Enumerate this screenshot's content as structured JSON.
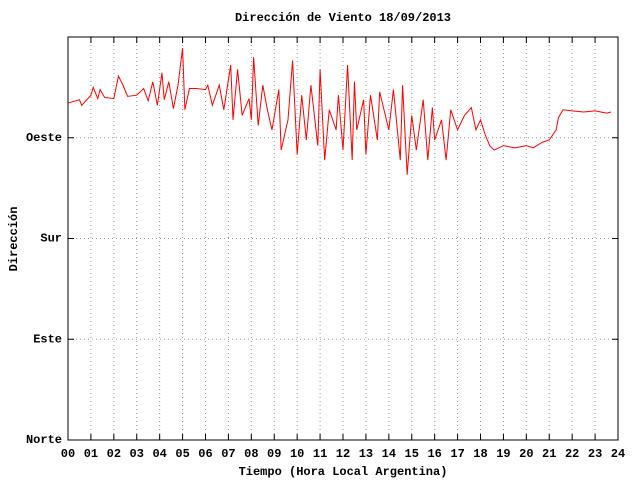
{
  "chart_data": {
    "type": "line",
    "title": "Dirección de Viento 18/09/2013",
    "x_label": "Tiempo (Hora Local Argentina)",
    "y_label": "Dirección",
    "color": "#ff0000",
    "grid": true,
    "xlim": [
      0,
      24
    ],
    "xticks": [
      {
        "value": 0,
        "label": "00"
      },
      {
        "value": 1,
        "label": "01"
      },
      {
        "value": 2,
        "label": "02"
      },
      {
        "value": 3,
        "label": "03"
      },
      {
        "value": 4,
        "label": "04"
      },
      {
        "value": 5,
        "label": "05"
      },
      {
        "value": 6,
        "label": "06"
      },
      {
        "value": 7,
        "label": "07"
      },
      {
        "value": 8,
        "label": "08"
      },
      {
        "value": 9,
        "label": "09"
      },
      10,
      11,
      12,
      13,
      14,
      15,
      16,
      17,
      18,
      19,
      20,
      21,
      22,
      23,
      24
    ],
    "ylim": [
      0,
      360
    ],
    "yticks": [
      {
        "value": 0,
        "label": "Norte"
      },
      {
        "value": 90,
        "label": "Este"
      },
      {
        "value": 180,
        "label": "Sur"
      },
      {
        "value": 270,
        "label": "Oeste"
      }
    ],
    "x": [
      0.0,
      0.5,
      0.6,
      1.0,
      1.1,
      1.3,
      1.4,
      1.6,
      2.0,
      2.2,
      2.4,
      2.6,
      3.0,
      3.3,
      3.5,
      3.7,
      3.9,
      4.1,
      4.2,
      4.4,
      4.6,
      4.8,
      5.0,
      5.1,
      5.3,
      5.6,
      6.0,
      6.1,
      6.3,
      6.6,
      6.8,
      7.1,
      7.2,
      7.4,
      7.6,
      7.9,
      8.0,
      8.1,
      8.3,
      8.5,
      8.7,
      8.9,
      9.2,
      9.3,
      9.6,
      9.8,
      10.0,
      10.2,
      10.4,
      10.6,
      10.9,
      11.0,
      11.2,
      11.4,
      11.7,
      11.8,
      12.0,
      12.2,
      12.4,
      12.5,
      12.6,
      12.9,
      13.0,
      13.2,
      13.5,
      13.6,
      14.0,
      14.2,
      14.5,
      14.6,
      14.8,
      15.0,
      15.2,
      15.5,
      15.7,
      15.9,
      16.0,
      16.3,
      16.5,
      16.7,
      17.0,
      17.3,
      17.6,
      17.8,
      18.0,
      18.2,
      18.4,
      18.6,
      19.0,
      19.5,
      20.0,
      20.3,
      20.7,
      21.0,
      21.3,
      21.4,
      21.6,
      22.0,
      22.5,
      23.0,
      23.5,
      23.7
    ],
    "values": [
      301,
      304,
      299,
      308,
      315,
      305,
      313,
      306,
      305,
      325,
      317,
      307,
      308,
      314,
      303,
      320,
      299,
      328,
      304,
      320,
      296,
      317,
      350,
      295,
      314,
      314,
      313,
      317,
      299,
      317,
      295,
      335,
      286,
      331,
      290,
      305,
      286,
      342,
      281,
      317,
      295,
      277,
      313,
      259,
      286,
      339,
      255,
      308,
      268,
      317,
      263,
      331,
      250,
      295,
      277,
      308,
      259,
      335,
      250,
      320,
      277,
      304,
      255,
      308,
      268,
      311,
      277,
      313,
      250,
      317,
      237,
      290,
      259,
      304,
      250,
      297,
      268,
      286,
      250,
      295,
      277,
      290,
      297,
      277,
      286,
      273,
      263,
      259,
      263,
      261,
      263,
      261,
      266,
      268,
      277,
      288,
      295,
      294,
      293,
      294,
      292,
      293
    ]
  }
}
